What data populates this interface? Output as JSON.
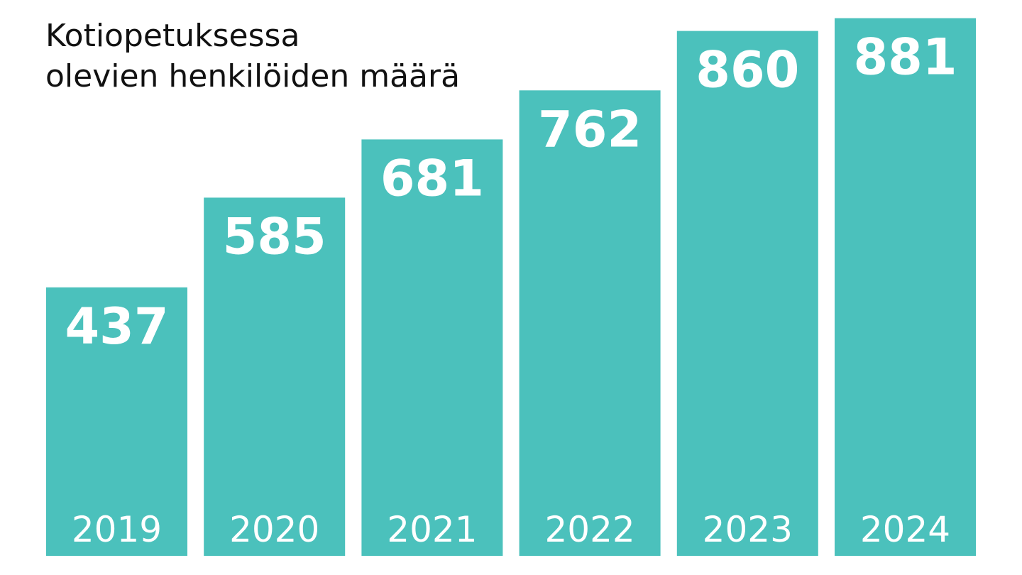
{
  "chart_data": {
    "type": "bar",
    "title_lines": [
      "Kotiopetuksessa",
      "olevien henkilöiden määrä"
    ],
    "categories": [
      "2019",
      "2020",
      "2021",
      "2022",
      "2023",
      "2024"
    ],
    "values": [
      437,
      585,
      681,
      762,
      860,
      881
    ],
    "value_labels": [
      "437",
      "585",
      "681",
      "762",
      "860",
      "881"
    ],
    "bar_color": "#4bc1bc",
    "label_color": "#ffffff",
    "title_color": "#111111",
    "background_color": "#ffffff",
    "grid": false,
    "legend": "none",
    "axes_visible": false
  }
}
